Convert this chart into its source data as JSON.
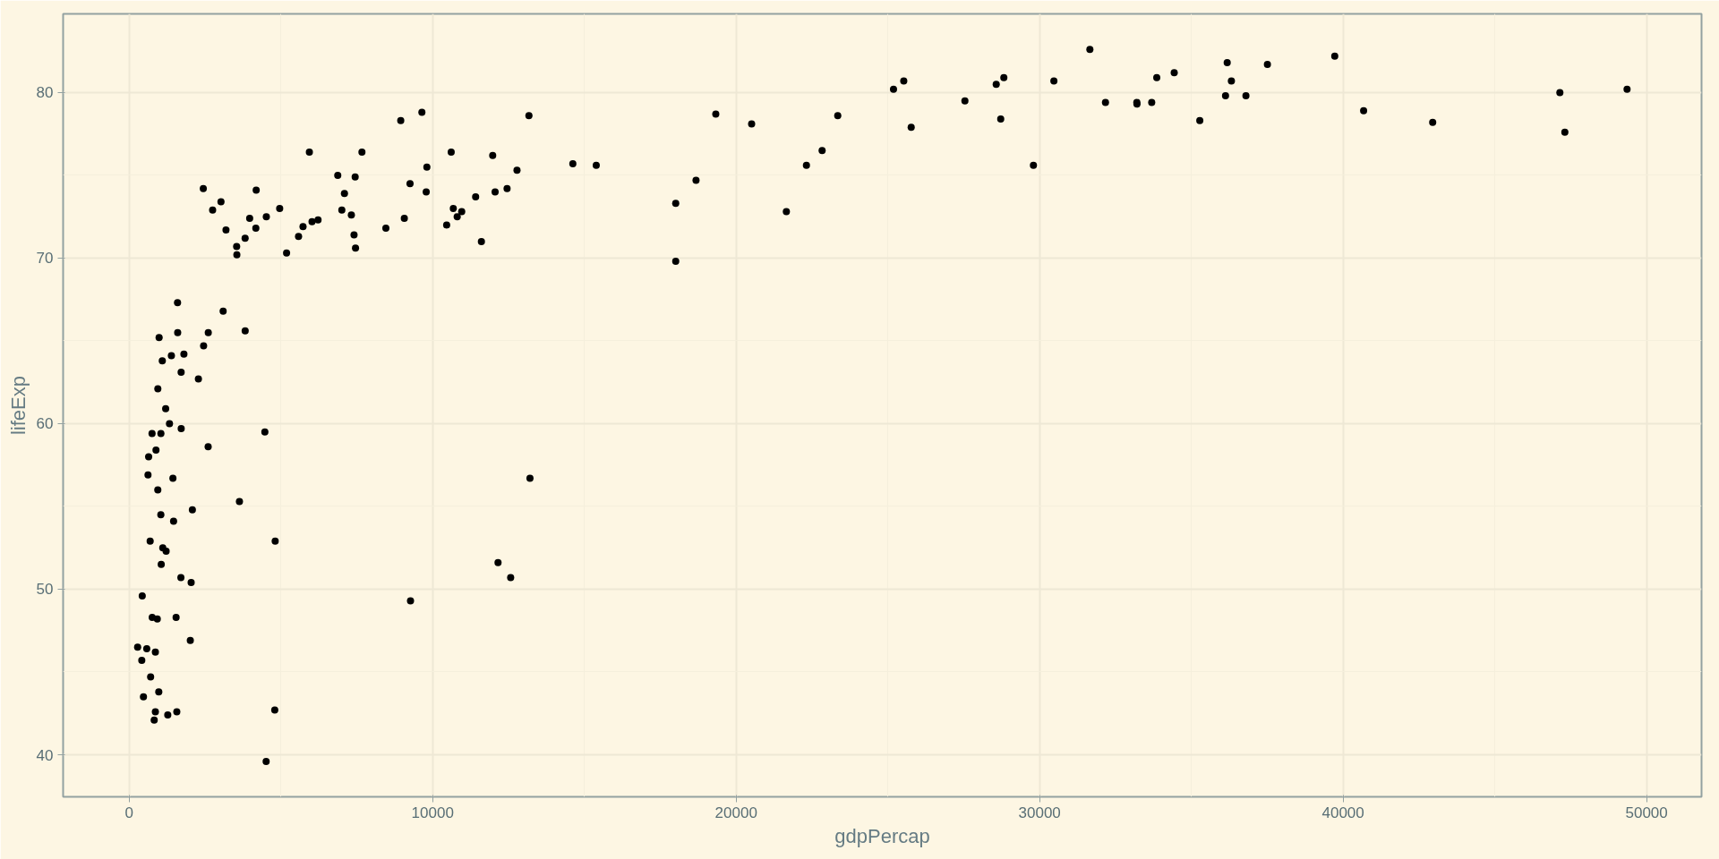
{
  "chart_data": {
    "type": "scatter",
    "xlabel": "gdpPercap",
    "ylabel": "lifeExp",
    "xlim": [
      -2177,
      51811
    ],
    "ylim": [
      37.46,
      84.75
    ],
    "xticks": [
      0,
      10000,
      20000,
      30000,
      40000,
      50000
    ],
    "yticks": [
      40,
      50,
      60,
      70,
      80
    ],
    "grid": true,
    "marker": "circle",
    "series": [
      {
        "color": "#000000",
        "x": [
          975,
          5937,
          6223,
          4797,
          12779,
          34435,
          36126,
          29796,
          1391,
          33693,
          1441,
          3822,
          7446,
          12570,
          9066,
          10681,
          1217,
          430,
          1714,
          2042,
          36319,
          706,
          1704,
          13172,
          4959,
          7007,
          986,
          278,
          3633,
          9645,
          1545,
          14619,
          8948,
          22833,
          35278,
          2082,
          6025,
          6873,
          5581,
          5728,
          12154,
          641,
          691,
          33207,
          30470,
          13206,
          753,
          32170,
          1328,
          27538,
          5186,
          943,
          579,
          1202,
          3548,
          39725,
          18009,
          36181,
          2452,
          3541,
          11606,
          4471,
          40676,
          25523,
          28570,
          7321,
          31656,
          4519,
          1463,
          1593,
          23348,
          47307,
          10461,
          1569,
          415,
          12058,
          1045,
          759,
          12452,
          1043,
          1803,
          10957,
          11978,
          3096,
          9254,
          3820,
          824,
          944,
          4811,
          1091,
          36798,
          25185,
          2749,
          620,
          2014,
          49357,
          22316,
          2606,
          9809,
          4173,
          7409,
          3190,
          15390,
          20510,
          19329,
          7670,
          10808,
          863,
          1598,
          21655,
          1712,
          9787,
          863,
          47143,
          18678,
          25768,
          926,
          9270,
          28821,
          3970,
          2602,
          4513,
          33860,
          37506,
          4185,
          28718,
          1107,
          7458,
          883,
          18009,
          7093,
          8458,
          1056,
          33203,
          42952,
          10611,
          11416,
          2442,
          3025,
          2281,
          1271,
          470
        ],
        "values": [
          43.8,
          76.4,
          72.3,
          42.7,
          75.3,
          81.2,
          79.8,
          75.6,
          64.1,
          79.4,
          56.7,
          65.6,
          74.9,
          50.7,
          72.4,
          73.0,
          52.3,
          49.6,
          59.7,
          50.4,
          80.7,
          44.7,
          50.7,
          78.6,
          73.0,
          72.9,
          65.2,
          46.5,
          55.3,
          78.8,
          48.3,
          75.7,
          78.3,
          76.5,
          78.3,
          54.8,
          72.2,
          75.0,
          71.3,
          71.9,
          51.6,
          58.0,
          52.9,
          79.3,
          80.7,
          56.7,
          59.4,
          79.4,
          60.0,
          79.5,
          70.3,
          56.0,
          46.4,
          60.9,
          70.2,
          82.2,
          73.3,
          81.8,
          64.7,
          70.7,
          71.0,
          59.5,
          78.9,
          80.7,
          80.5,
          72.6,
          82.6,
          72.5,
          54.1,
          67.3,
          78.6,
          77.6,
          72.0,
          42.6,
          45.7,
          74.0,
          59.4,
          48.3,
          74.2,
          54.5,
          64.2,
          72.8,
          76.2,
          66.8,
          74.5,
          71.2,
          42.1,
          62.1,
          52.9,
          63.8,
          79.8,
          80.2,
          72.9,
          56.9,
          46.9,
          80.2,
          75.6,
          65.5,
          75.5,
          71.8,
          71.4,
          71.7,
          75.6,
          78.1,
          78.7,
          76.4,
          72.5,
          46.2,
          65.5,
          72.8,
          63.1,
          74.0,
          42.6,
          80.0,
          74.7,
          77.9,
          48.2,
          49.3,
          80.9,
          72.4,
          58.6,
          39.6,
          80.9,
          81.7,
          74.1,
          78.4,
          52.5,
          70.6,
          58.4,
          69.8,
          73.9,
          71.8,
          51.5,
          79.4,
          78.2,
          76.4,
          73.7,
          74.2,
          73.4,
          62.7,
          42.4,
          43.5
        ]
      }
    ]
  }
}
